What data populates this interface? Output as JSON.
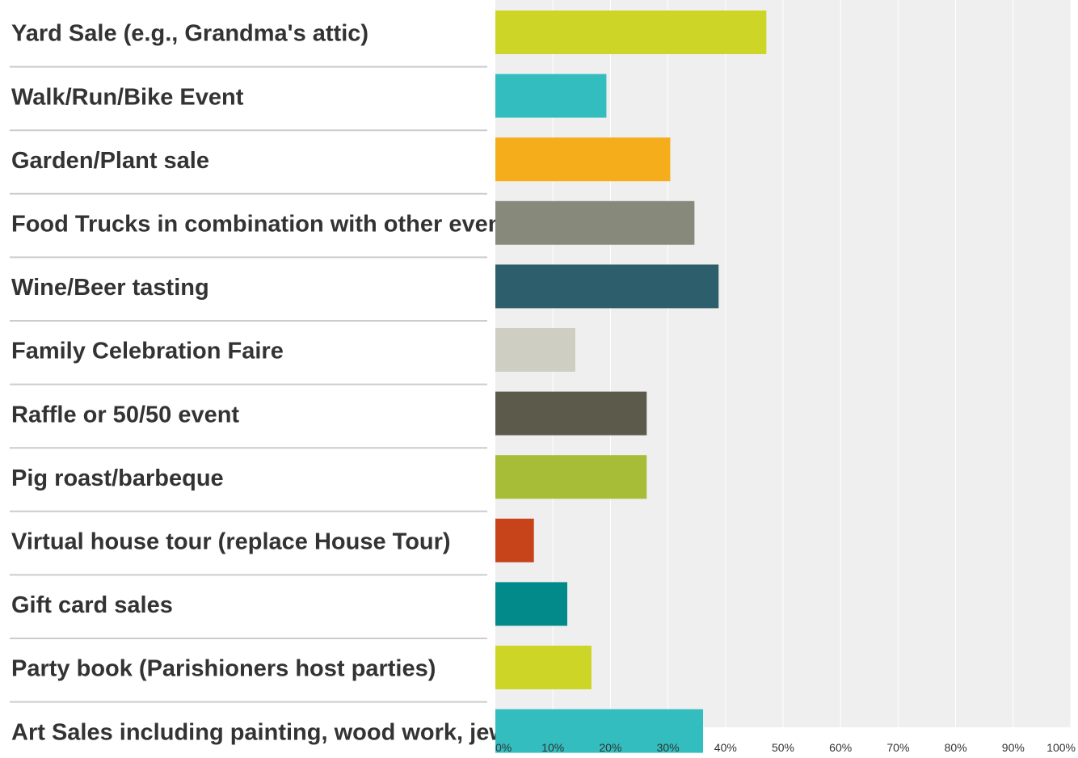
{
  "chart_data": {
    "type": "bar",
    "orientation": "horizontal",
    "categories": [
      "Yard Sale (e.g., Grandma's attic)",
      "Walk/Run/Bike Event",
      "Garden/Plant sale",
      "Food Trucks in combination with other event",
      "Wine/Beer tasting",
      "Family Celebration Faire",
      "Raffle or 50/50 event",
      "Pig roast/barbeque",
      "Virtual house tour (replace House Tour)",
      "Gift card sales",
      "Party book (Parishioners host parties)",
      "Art Sales including painting, wood work, jewelry, etc."
    ],
    "values": [
      47.1,
      19.3,
      30.4,
      34.6,
      38.8,
      13.9,
      26.3,
      26.3,
      6.7,
      12.5,
      16.7,
      36.1
    ],
    "colors": [
      "#cdd627",
      "#33bdbf",
      "#f5ad1c",
      "#878a7a",
      "#2d5e6b",
      "#cfcec2",
      "#5b5a4b",
      "#a7bd38",
      "#c7441a",
      "#028a8a",
      "#cdd627",
      "#33bdbf"
    ],
    "xlim": [
      0,
      100
    ],
    "xticks": [
      "0%",
      "10%",
      "20%",
      "30%",
      "40%",
      "50%",
      "60%",
      "70%",
      "80%",
      "90%",
      "100%"
    ],
    "grid": true,
    "background": "#efefef",
    "title": "",
    "xlabel": "",
    "ylabel": ""
  }
}
